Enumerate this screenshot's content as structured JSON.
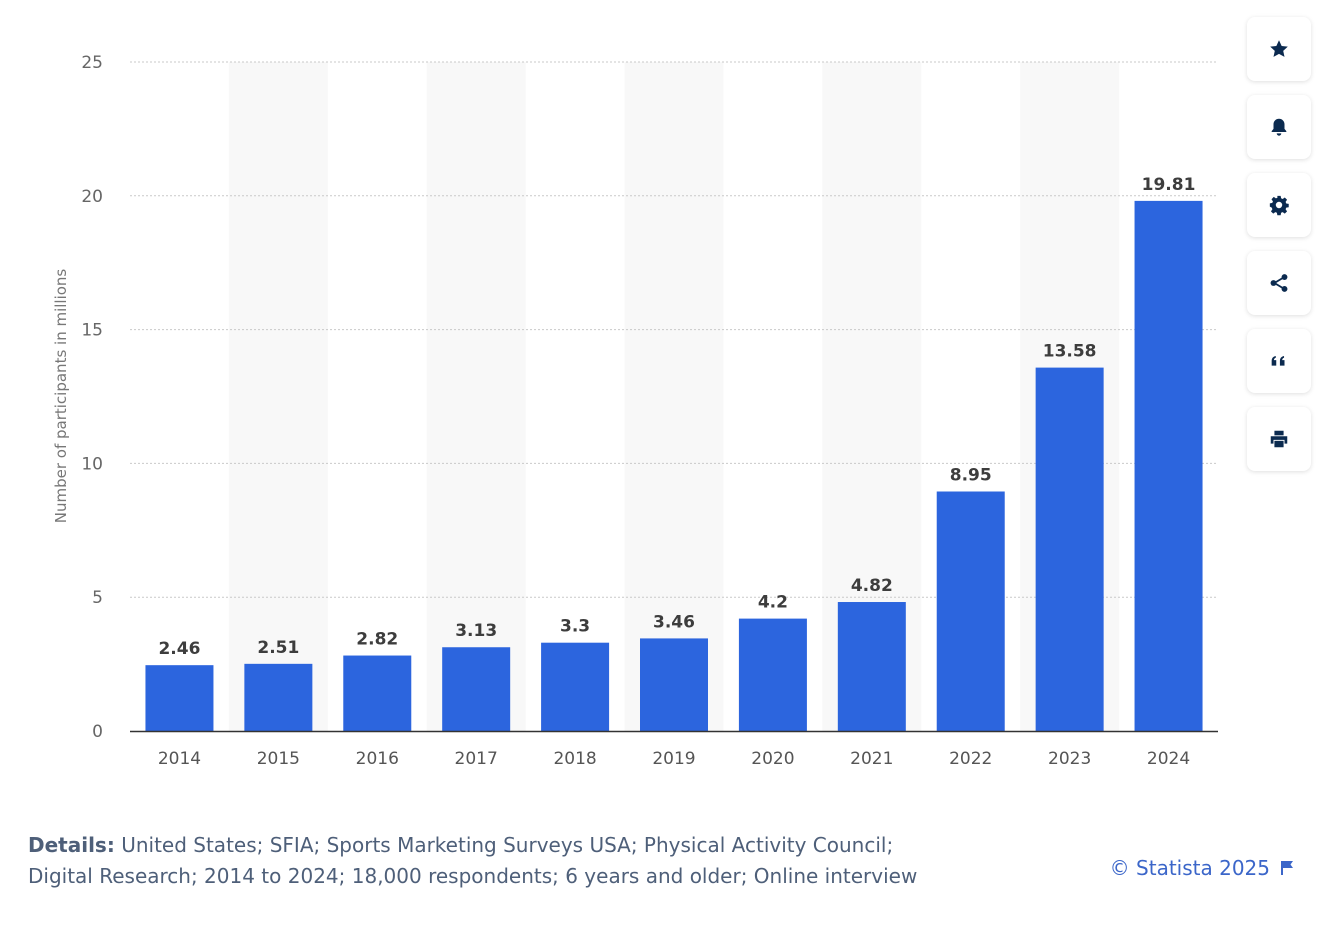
{
  "chart_data": {
    "type": "bar",
    "categories": [
      "2014",
      "2015",
      "2016",
      "2017",
      "2018",
      "2019",
      "2020",
      "2021",
      "2022",
      "2023",
      "2024"
    ],
    "values": [
      2.46,
      2.51,
      2.82,
      3.13,
      3.3,
      3.46,
      4.2,
      4.82,
      8.95,
      13.58,
      19.81
    ],
    "labels": [
      "2.46",
      "2.51",
      "2.82",
      "3.13",
      "3.3",
      "3.46",
      "4.2",
      "4.82",
      "8.95",
      "13.58",
      "19.81"
    ],
    "ylabel": "Number of participants in millions",
    "xlabel": "",
    "ylim": [
      0,
      25
    ],
    "yticks": [
      "0",
      "5",
      "10",
      "15",
      "20",
      "25"
    ],
    "grid": "dotted horizontal",
    "bar_color": "#2c65de"
  },
  "toolbar": {
    "buttons": [
      {
        "name": "star-icon"
      },
      {
        "name": "bell-icon"
      },
      {
        "name": "gear-icon"
      },
      {
        "name": "share-icon"
      },
      {
        "name": "quote-icon"
      },
      {
        "name": "print-icon"
      }
    ]
  },
  "footer": {
    "details_label": "Details:",
    "details_text": " United States; SFIA; Sports Marketing Surveys USA; Physical Activity Council; Digital Research; 2014 to 2024; 18,000 respondents; 6 years and older; Online interview",
    "credit": "© Statista 2025"
  },
  "colors": {
    "bar": "#2c65de",
    "accent": "#3b66c9",
    "icon": "#0b2a4f",
    "footer_text": "#4e5f79"
  }
}
